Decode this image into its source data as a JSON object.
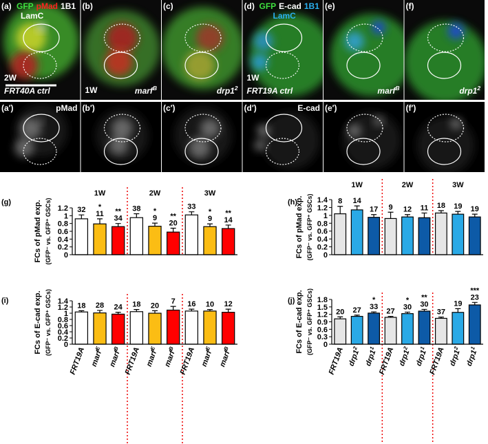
{
  "panels": [
    {
      "label": "(a)",
      "stain": [
        "GFP",
        "pMad",
        "1B1"
      ],
      "stain2": "LamC",
      "time": "2W",
      "genotype": "FRT40A ctrl"
    },
    {
      "label": "(b)",
      "time": "1W",
      "genotype": {
        "text": "marf",
        "sup": "B"
      }
    },
    {
      "label": "(c)",
      "genotype": {
        "text": "drp1",
        "sup": "2"
      }
    },
    {
      "label": "(d)",
      "stain": [
        "GFP",
        "E-cad",
        "1B1"
      ],
      "stain2": "LamC",
      "time": "1W",
      "genotype": "FRT19A ctrl"
    },
    {
      "label": "(e)",
      "genotype": {
        "text": "marf",
        "sup": "B"
      }
    },
    {
      "label": "(f)",
      "genotype": {
        "text": "drp1",
        "sup": "2"
      }
    },
    {
      "label": "(a′)",
      "channel": "pMad"
    },
    {
      "label": "(b′)"
    },
    {
      "label": "(c′)"
    },
    {
      "label": "(d′)",
      "channel": "E-cad"
    },
    {
      "label": "(e′)"
    },
    {
      "label": "(f′)"
    }
  ],
  "chart_data": [
    {
      "type": "bar",
      "label": "(g)",
      "ylabel": "FCs of pMad exp.",
      "ylabel_sub": "(GFP⁻ vs. GFP⁺ GSCs)",
      "groups": [
        "1W",
        "2W",
        "3W"
      ],
      "values": [
        0.92,
        0.79,
        0.72,
        0.95,
        0.73,
        0.58,
        1.02,
        0.72,
        0.67
      ],
      "errors": [
        0.1,
        0.13,
        0.08,
        0.1,
        0.08,
        0.1,
        0.08,
        0.07,
        0.09
      ],
      "n": [
        32,
        11,
        34,
        38,
        9,
        20,
        33,
        9,
        14
      ],
      "stars": [
        null,
        "*",
        "**",
        null,
        "*",
        "**",
        null,
        "*",
        "**"
      ],
      "colors": [
        "#ffffff",
        "#fbbd14",
        "#ff0000"
      ],
      "ylim": [
        0,
        1.2
      ],
      "yticks": [
        0,
        0.2,
        0.4,
        0.6,
        0.8,
        1,
        1.2
      ]
    },
    {
      "type": "bar",
      "label": "(i)",
      "ylabel": "FCs of E-cad exp.",
      "ylabel_sub": "(GFP⁻ vs. GFP⁺ GSCs)",
      "categories": [
        {
          "text": "FRT19A"
        },
        {
          "text": "marf",
          "sup": "E"
        },
        {
          "text": "marf",
          "sup": "B"
        },
        {
          "text": "FRT19A"
        },
        {
          "text": "marf",
          "sup": "E"
        },
        {
          "text": "marf",
          "sup": "B"
        },
        {
          "text": "FRT19A"
        },
        {
          "text": "marf",
          "sup": "E"
        },
        {
          "text": "marf",
          "sup": "B"
        }
      ],
      "values": [
        1.04,
        1.01,
        0.97,
        1.05,
        1.0,
        1.1,
        1.07,
        1.07,
        1.03
      ],
      "errors": [
        0.04,
        0.08,
        0.06,
        0.07,
        0.08,
        0.12,
        0.06,
        0.05,
        0.1
      ],
      "n": [
        18,
        28,
        24,
        18,
        20,
        7,
        16,
        10,
        12
      ],
      "colors": [
        "#ffffff",
        "#fbbd14",
        "#ff0000"
      ],
      "ylim": [
        0,
        1.4
      ],
      "yticks": [
        0,
        0.2,
        0.4,
        0.6,
        0.8,
        1,
        1.2,
        1.4
      ]
    },
    {
      "type": "bar",
      "label": "(h)",
      "ylabel": "FCs of pMad exp.",
      "ylabel_sub": "(GFP⁻ vs. GFP⁺ GSCs)",
      "groups": [
        "1W",
        "2W",
        "3W"
      ],
      "values": [
        1.04,
        1.14,
        0.95,
        0.92,
        0.96,
        0.94,
        1.06,
        1.03,
        0.96
      ],
      "errors": [
        0.19,
        0.1,
        0.07,
        0.16,
        0.06,
        0.12,
        0.06,
        0.07,
        0.07
      ],
      "n": [
        8,
        14,
        17,
        9,
        12,
        11,
        18,
        19,
        19
      ],
      "colors": [
        "#e6e6e6",
        "#2aa9e6",
        "#0d5aa7"
      ],
      "ylim": [
        0,
        1.4
      ],
      "yticks": [
        0,
        0.2,
        0.4,
        0.6,
        0.8,
        1,
        1.2,
        1.4
      ]
    },
    {
      "type": "bar",
      "label": "(j)",
      "ylabel": "FCs of E-cad exp.",
      "ylabel_sub": "(GFP⁻ vs. GFP⁺ GSCs)",
      "categories": [
        {
          "text": "FRT19A"
        },
        {
          "text": "drp1",
          "sup": "2"
        },
        {
          "text": "drp1",
          "sup": "1"
        },
        {
          "text": "FRT19A"
        },
        {
          "text": "drp1",
          "sup": "2"
        },
        {
          "text": "drp1",
          "sup": "1"
        },
        {
          "text": "FRT19A"
        },
        {
          "text": "drp1",
          "sup": "2"
        },
        {
          "text": "drp1",
          "sup": "1"
        }
      ],
      "values": [
        1.02,
        1.12,
        1.25,
        1.08,
        1.23,
        1.33,
        1.04,
        1.28,
        1.58
      ],
      "errors": [
        0.08,
        0.05,
        0.05,
        0.04,
        0.06,
        0.07,
        0.05,
        0.15,
        0.1
      ],
      "n": [
        20,
        27,
        33,
        27,
        30,
        30,
        37,
        19,
        23
      ],
      "stars": [
        null,
        null,
        "*",
        null,
        "*",
        "**",
        null,
        null,
        "***"
      ],
      "colors": [
        "#e6e6e6",
        "#2aa9e6",
        "#0d5aa7"
      ],
      "ylim": [
        0,
        1.8
      ],
      "yticks": [
        0,
        0.3,
        0.6,
        0.9,
        1.2,
        1.5,
        1.8
      ]
    }
  ]
}
